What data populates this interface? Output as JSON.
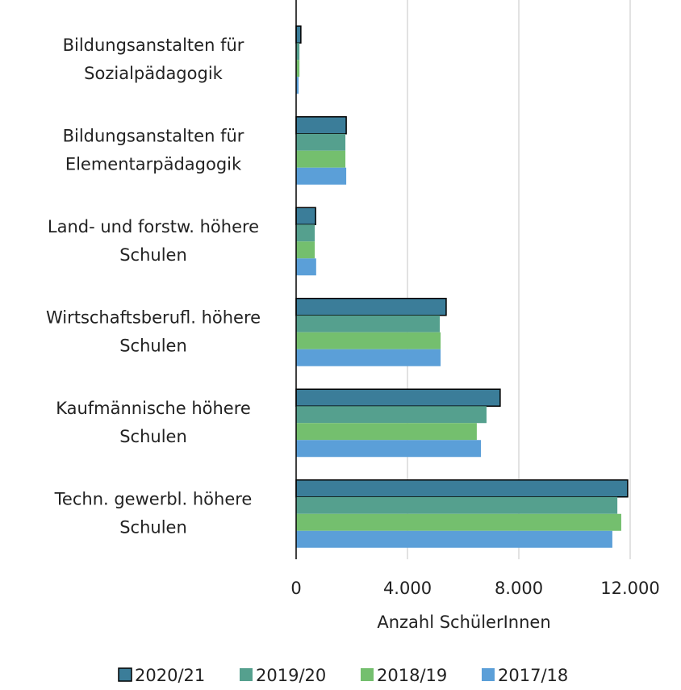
{
  "chart_data": {
    "type": "hbar",
    "categories": [
      [
        "Bildungsanstalten für",
        "Sozialpädagogik"
      ],
      [
        "Bildungsanstalten für",
        "Elementarpädagogik"
      ],
      [
        "Land- und forstw. höhere",
        "Schulen"
      ],
      [
        "Wirtschaftsberufl. höhere",
        "Schulen"
      ],
      [
        "Kaufmännische höhere",
        "Schulen"
      ],
      [
        "Techn. gewerbl. höhere",
        "Schulen"
      ]
    ],
    "series": [
      {
        "name": "2020/21",
        "color": "#3b7d99",
        "outline": "#000000",
        "values": [
          170,
          1800,
          700,
          5390,
          7330,
          11910
        ]
      },
      {
        "name": "2019/20",
        "color": "#55a08e",
        "values": [
          120,
          1770,
          670,
          5160,
          6840,
          11540
        ]
      },
      {
        "name": "2018/19",
        "color": "#74bf6e",
        "values": [
          120,
          1770,
          670,
          5190,
          6490,
          11680
        ]
      },
      {
        "name": "2017/18",
        "color": "#5b9fd8",
        "values": [
          90,
          1800,
          720,
          5190,
          6640,
          11360
        ]
      }
    ],
    "xlabel": "Anzahl SchülerInnen",
    "xlim": [
      0,
      12000
    ],
    "xticks": [
      0,
      {
        "value": 4000,
        "label": "4.000"
      },
      {
        "value": 8000,
        "label": "8.000"
      },
      {
        "value": 12000,
        "label": "12.000"
      }
    ],
    "grid": true,
    "legend": "bottom"
  }
}
